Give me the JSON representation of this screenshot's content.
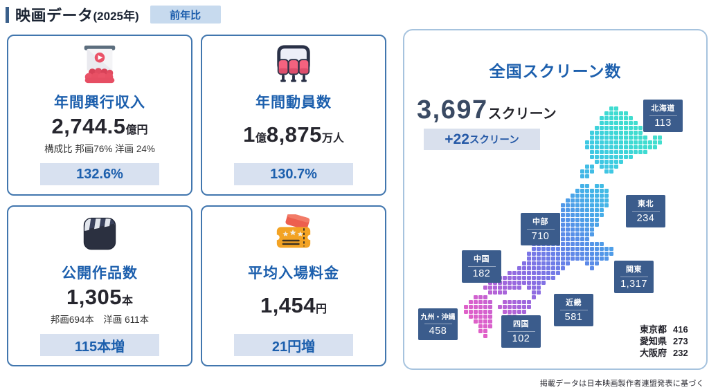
{
  "header": {
    "title": "映画データ",
    "year": "(2025年)",
    "yoy_badge": "前年比"
  },
  "cards": [
    {
      "title": "年間興行収入",
      "icon": "cinema-screen-audience-icon",
      "value_parts": [
        {
          "text": "2,744.5"
        },
        {
          "text": "億円",
          "small": true
        }
      ],
      "sub": "構成比 邦画76% 洋画 24%",
      "badge": "132.6%"
    },
    {
      "title": "年間動員数",
      "icon": "cinema-seats-icon",
      "value_parts": [
        {
          "text": "1"
        },
        {
          "text": "億",
          "small": true
        },
        {
          "text": "8,875"
        },
        {
          "text": "万人",
          "small": true
        }
      ],
      "badge": "130.7%"
    },
    {
      "title": "公開作品数",
      "icon": "clapperboard-icon",
      "value_parts": [
        {
          "text": "1,305"
        },
        {
          "text": "本",
          "small": true
        }
      ],
      "sub": "邦画694本　洋画 611本",
      "badge": "115本増"
    },
    {
      "title": "平均入場料金",
      "icon": "movie-tickets-icon",
      "value_parts": [
        {
          "text": "1,454"
        },
        {
          "text": "円",
          "small": true
        }
      ],
      "badge": "21円増"
    }
  ],
  "screen_panel": {
    "title": "全国スクリーン数",
    "total_parts": [
      {
        "text": "3,697"
      },
      {
        "text": "スクリーン",
        "small": true
      }
    ],
    "change_parts": [
      {
        "text": "+22"
      },
      {
        "text": "スクリーン",
        "small": true
      }
    ],
    "regions": [
      {
        "name": "北海道",
        "value": "113"
      },
      {
        "name": "東北",
        "value": "234"
      },
      {
        "name": "中部",
        "value": "710"
      },
      {
        "name": "関東",
        "value": "1,317"
      },
      {
        "name": "中国",
        "value": "182"
      },
      {
        "name": "近畿",
        "value": "581"
      },
      {
        "name": "四国",
        "value": "102"
      },
      {
        "name": "九州・沖縄",
        "value": "458"
      }
    ],
    "prefectures": [
      {
        "name": "東京都",
        "value": "416"
      },
      {
        "name": "愛知県",
        "value": "273"
      },
      {
        "name": "大阪府",
        "value": "232"
      }
    ]
  },
  "footer": "掲載データは日本映画製作者連盟発表に基づく",
  "map": {
    "region_codes": {
      "H": "北海道",
      "T": "東北",
      "B": "中部",
      "K": "関東",
      "N": "近畿",
      "C": "中国",
      "S": "四国",
      "Q": "九州・沖縄"
    },
    "ramp": [
      [
        0.0,
        "#E95EC1"
      ],
      [
        0.1,
        "#D661CE"
      ],
      [
        0.2,
        "#A565DB"
      ],
      [
        0.3,
        "#8570E4"
      ],
      [
        0.4,
        "#6980E8"
      ],
      [
        0.5,
        "#5690E8"
      ],
      [
        0.62,
        "#45B0E8"
      ],
      [
        0.74,
        "#3FCBE2"
      ],
      [
        0.85,
        "#3EDBD2"
      ],
      [
        1.0,
        "#4AE3C8"
      ]
    ],
    "rows": [
      "..............................HH..........",
      ".............................HHHHH........",
      "............................HHHHHHH.......",
      "............................HHHHHHHH......",
      "...........................HHHHHHHHHH.....",
      "..........................HHHHHHHHHHH.....",
      "..........................HHHHHHHHHHHH.HH.",
      ".........................HHHHHHHHHHHHHHHH.",
      ".........................HHHHHHHHHHHHHHH..",
      "..........................HHHHHHHHHHHH....",
      "..........................HHHHHHHHH.......",
      "...........................HHHHHH.........",
      ".........................HH.HHHH..........",
      "........................HHH..HH...........",
      "........................HH................",
      "..........................................",
      "........................TT.TT.............",
      ".......................TTTTTTT............",
      "......................TTTTTTTT............",
      ".....................TTTTTTTTT............",
      "....................TTTTTTTTTT............",
      "....................TTTTTTTTT.............",
      "...................TTTTTTTTTT.............",
      "...................TTTTTTTTT..............",
      "..................TTTTTTTTTT..............",
      "..................TTTTTTTTT...............",
      ".............BB..TTTTTTTTTT...............",
      ".............BB.BBBBBBBBBB................",
      "..............BBBBBBBBBBBKKKK.............",
      "..............BBBBBBBBBBKKKKKKK...........",
      ".............BBBBBBBBBBBKKKKKKK...........",
      ".............BBBBBBBBBBKKKKKKK............",
      "............BBBBBBBBBB...KKK..............",
      "...........NNNNNNBBBB.....K...............",
      ".........NNNNNNNNNNN......................",
      ".......CCCCCCCNNNNN.......................",
      ".....CCCCCCCCNNNN.........................",
      "....CCCCCCCC.NNN..........................",
      ".....CCCC.....NN..........................",
      "..QQQ.........N...........................",
      ".QQQQQ..SSSSSS............................",
      "QQQQQQ.SSSSSSS............................",
      "QQQQQQ..SSSSS.............................",
      ".QQQQQ...SS...............................",
      "..QQQQ....................................",
      "...QQQ....................................",
      "...QQ.....................................",
      "....Q....................................."
    ]
  },
  "colors": {
    "primary_blue": "#1C5FAD",
    "card_border": "#4176AE",
    "light_badge_bg": "#D8E1F0",
    "panel_border": "#A6C3DE",
    "region_badge_bg": "#3B5C8C",
    "total_number": "#3A4A63",
    "header_accent": "#3A5F8A"
  },
  "chart_data": {
    "type": "table",
    "title": "映画データ(2025年) 前年比",
    "metrics": [
      {
        "label": "年間興行収入",
        "value": 2744.5,
        "unit": "億円",
        "breakdown": "構成比 邦画76% 洋画 24%",
        "yoy": "132.6%"
      },
      {
        "label": "年間動員数",
        "value": 18875,
        "unit": "万人",
        "yoy": "130.7%"
      },
      {
        "label": "公開作品数",
        "value": 1305,
        "unit": "本",
        "breakdown": "邦画694本 洋画611本",
        "change": "115本増"
      },
      {
        "label": "平均入場料金",
        "value": 1454,
        "unit": "円",
        "change": "21円増"
      }
    ],
    "screens": {
      "title": "全国スクリーン数",
      "total": 3697,
      "change": 22,
      "by_region": {
        "categories": [
          "北海道",
          "東北",
          "関東",
          "中部",
          "近畿",
          "中国",
          "四国",
          "九州・沖縄"
        ],
        "values": [
          113,
          234,
          1317,
          710,
          581,
          182,
          102,
          458
        ]
      },
      "by_prefecture": {
        "categories": [
          "東京都",
          "愛知県",
          "大阪府"
        ],
        "values": [
          416,
          273,
          232
        ]
      }
    }
  }
}
